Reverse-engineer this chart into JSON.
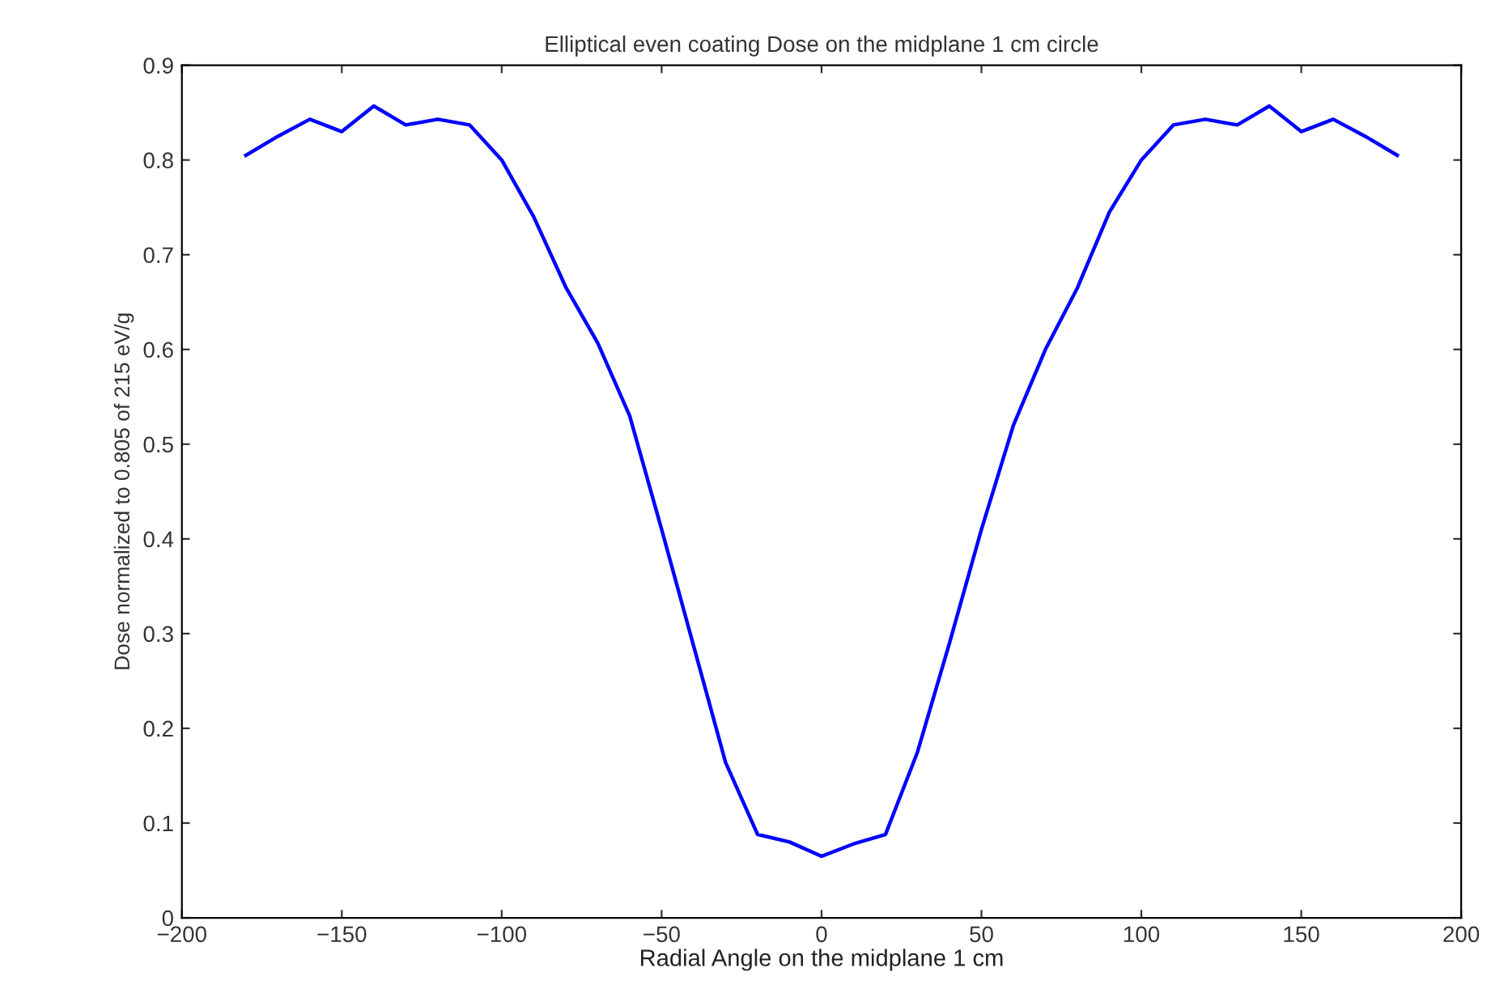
{
  "chart_data": {
    "type": "line",
    "title": "Elliptical even coating Dose on the midplane 1 cm circle",
    "xlabel": "Radial Angle on the midplane 1 cm",
    "ylabel": "Dose normalized to 0.805 of 215 eV/g",
    "x": [
      -180,
      -170,
      -160,
      -150,
      -140,
      -130,
      -120,
      -110,
      -100,
      -90,
      -80,
      -70,
      -60,
      -50,
      -40,
      -30,
      -20,
      -10,
      0,
      10,
      20,
      30,
      40,
      50,
      60,
      70,
      80,
      90,
      100,
      110,
      120,
      130,
      140,
      150,
      160,
      170,
      180
    ],
    "series": [
      {
        "color": "#0000ff",
        "values": [
          0.805,
          0.825,
          0.843,
          0.83,
          0.857,
          0.837,
          0.843,
          0.837,
          0.8,
          0.74,
          0.666,
          0.607,
          0.53,
          0.41,
          0.287,
          0.164,
          0.088,
          0.08,
          0.065,
          0.078,
          0.088,
          0.175,
          0.29,
          0.41,
          0.52,
          0.6,
          0.665,
          0.745,
          0.8,
          0.837,
          0.843,
          0.837,
          0.857,
          0.83,
          0.843,
          0.825,
          0.805
        ]
      }
    ],
    "xlim": [
      -200,
      200
    ],
    "ylim": [
      0,
      0.9
    ],
    "xticks": [
      -200,
      -150,
      -100,
      -50,
      0,
      50,
      100,
      150,
      200
    ],
    "yticks": [
      0,
      0.1,
      0.2,
      0.3,
      0.4,
      0.5,
      0.6,
      0.7,
      0.8,
      0.9
    ],
    "grid": false,
    "marker": "none",
    "line_style": "solid"
  }
}
